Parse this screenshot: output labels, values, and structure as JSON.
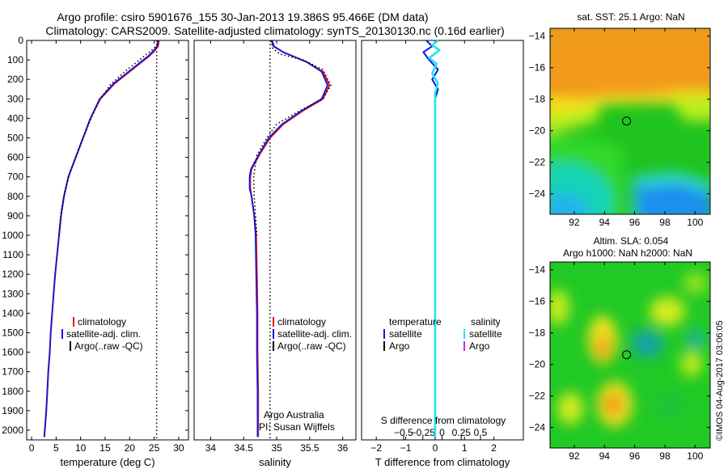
{
  "title": {
    "line1": "Argo profile: csiro 5901676_155 30-Jan-2013 19.386S 95.466E (DM data)",
    "line2": "Climatology: CARS2009. Satellite-adjusted climatology: synTS_20130130.nc (0.16d earlier)"
  },
  "colors": {
    "climatology": "#ee1111",
    "satellite": "#1515e0",
    "argo": "#000000",
    "cyan": "#22e5f0",
    "magenta": "#dd22dd"
  },
  "chart_data": [
    {
      "id": "temperature",
      "type": "line",
      "xlabel": "temperature (deg C)",
      "xlim": [
        -1,
        32
      ],
      "ylim": [
        2050,
        0
      ],
      "xticks": [
        0,
        5,
        10,
        15,
        20,
        25,
        30
      ],
      "yticks": [
        0,
        100,
        200,
        300,
        400,
        500,
        600,
        700,
        800,
        900,
        1000,
        1100,
        1200,
        1300,
        1400,
        1500,
        1600,
        1700,
        1800,
        1900,
        2000
      ],
      "ref_line": 25.5,
      "legend": [
        "climatology",
        "satellite-adj. clim.",
        "Argo(..raw -QC)"
      ],
      "series": [
        {
          "name": "climatology",
          "points": [
            [
              26,
              0
            ],
            [
              25.8,
              30
            ],
            [
              25,
              55
            ],
            [
              24,
              80
            ],
            [
              22.5,
              110
            ],
            [
              20,
              160
            ],
            [
              17,
              220
            ],
            [
              14,
              300
            ],
            [
              12,
              400
            ],
            [
              10.5,
              500
            ],
            [
              9,
              600
            ],
            [
              7.5,
              700
            ],
            [
              6.6,
              800
            ],
            [
              6,
              900
            ],
            [
              5.6,
              1000
            ],
            [
              5.2,
              1100
            ],
            [
              4.8,
              1200
            ],
            [
              4.5,
              1300
            ],
            [
              4.2,
              1400
            ],
            [
              3.9,
              1500
            ],
            [
              3.7,
              1600
            ],
            [
              3.4,
              1700
            ],
            [
              3.2,
              1800
            ],
            [
              3,
              1900
            ],
            [
              2.7,
              2000
            ],
            [
              2.6,
              2035
            ]
          ]
        },
        {
          "name": "satellite",
          "points": [
            [
              25.8,
              0
            ],
            [
              25.6,
              30
            ],
            [
              24.8,
              55
            ],
            [
              23.8,
              80
            ],
            [
              22.3,
              110
            ],
            [
              19.8,
              160
            ],
            [
              16.8,
              220
            ],
            [
              13.9,
              300
            ],
            [
              12,
              400
            ],
            [
              10.5,
              500
            ],
            [
              9,
              600
            ],
            [
              7.5,
              700
            ],
            [
              6.6,
              800
            ],
            [
              6,
              900
            ],
            [
              5.6,
              1000
            ],
            [
              5.2,
              1100
            ],
            [
              4.8,
              1200
            ],
            [
              4.5,
              1300
            ],
            [
              4.2,
              1400
            ],
            [
              3.9,
              1500
            ],
            [
              3.7,
              1600
            ],
            [
              3.4,
              1700
            ],
            [
              3.2,
              1800
            ],
            [
              3,
              1900
            ],
            [
              2.7,
              2000
            ],
            [
              2.6,
              2035
            ]
          ]
        },
        {
          "name": "argo",
          "points": [
            [
              25.8,
              0
            ],
            [
              25.6,
              20
            ],
            [
              25,
              40
            ],
            [
              23.5,
              70
            ],
            [
              22,
              100
            ],
            [
              19,
              160
            ],
            [
              16,
              230
            ],
            [
              13.5,
              320
            ],
            [
              11.8,
              420
            ],
            [
              10.2,
              520
            ],
            [
              9,
              600
            ],
            [
              7.8,
              680
            ],
            [
              6.8,
              770
            ],
            [
              6.1,
              870
            ],
            [
              5.6,
              1000
            ]
          ]
        }
      ]
    },
    {
      "id": "salinity",
      "type": "line",
      "xlabel": "salinity",
      "xlim": [
        33.75,
        36.2
      ],
      "ylim": [
        2050,
        0
      ],
      "xticks": [
        34,
        34.5,
        35,
        35.5,
        36
      ],
      "ref_line": 34.9,
      "legend": [
        "climatology",
        "satellite-adj. clim.",
        "Argo(..raw -QC)"
      ],
      "annotations": [
        "Argo Australia",
        "PI: Susan Wijffels"
      ],
      "series": [
        {
          "name": "climatology",
          "points": [
            [
              34.92,
              0
            ],
            [
              34.95,
              30
            ],
            [
              35.1,
              60
            ],
            [
              35.45,
              110
            ],
            [
              35.7,
              160
            ],
            [
              35.8,
              230
            ],
            [
              35.7,
              300
            ],
            [
              35.4,
              360
            ],
            [
              35.1,
              430
            ],
            [
              34.9,
              500
            ],
            [
              34.75,
              580
            ],
            [
              34.62,
              660
            ],
            [
              34.6,
              700
            ],
            [
              34.6,
              760
            ],
            [
              34.62,
              800
            ],
            [
              34.66,
              900
            ],
            [
              34.69,
              1000
            ],
            [
              34.7,
              1200
            ],
            [
              34.71,
              1400
            ],
            [
              34.71,
              1600
            ],
            [
              34.72,
              1800
            ],
            [
              34.72,
              2000
            ],
            [
              34.72,
              2035
            ]
          ]
        },
        {
          "name": "satellite",
          "points": [
            [
              34.93,
              0
            ],
            [
              34.96,
              30
            ],
            [
              35.1,
              60
            ],
            [
              35.45,
              110
            ],
            [
              35.68,
              160
            ],
            [
              35.77,
              230
            ],
            [
              35.68,
              300
            ],
            [
              35.38,
              360
            ],
            [
              35.08,
              430
            ],
            [
              34.88,
              500
            ],
            [
              34.74,
              580
            ],
            [
              34.61,
              660
            ],
            [
              34.59,
              700
            ],
            [
              34.59,
              760
            ],
            [
              34.62,
              800
            ],
            [
              34.66,
              900
            ],
            [
              34.68,
              1000
            ],
            [
              34.69,
              1200
            ],
            [
              34.7,
              1400
            ],
            [
              34.7,
              1600
            ],
            [
              34.71,
              1800
            ],
            [
              34.71,
              2000
            ],
            [
              34.71,
              2035
            ]
          ]
        },
        {
          "name": "argo",
          "points": [
            [
              34.92,
              0
            ],
            [
              34.94,
              40
            ],
            [
              35.05,
              70
            ],
            [
              35.4,
              100
            ],
            [
              35.7,
              150
            ],
            [
              35.82,
              230
            ],
            [
              35.7,
              300
            ],
            [
              35.3,
              370
            ],
            [
              35,
              430
            ],
            [
              34.85,
              500
            ],
            [
              34.7,
              590
            ],
            [
              34.65,
              700
            ],
            [
              34.66,
              800
            ],
            [
              34.68,
              900
            ],
            [
              34.7,
              1000
            ]
          ]
        }
      ]
    },
    {
      "id": "difference",
      "type": "line",
      "xlabel": "T difference from climatology",
      "xlim": [
        -2.5,
        3
      ],
      "ylim": [
        2050,
        0
      ],
      "xticks": [
        -2,
        -1,
        0,
        1,
        2
      ],
      "inner_label": "S difference from climatology",
      "inner_ticks": [
        "-0.5",
        "-0.25",
        "0",
        "0.25",
        "0.5"
      ],
      "inner_tick_values": [
        -0.5,
        -0.25,
        0,
        0.25,
        0.5
      ],
      "legend_temperature": [
        "temperature",
        "satellite",
        "Argo"
      ],
      "legend_salinity": [
        "salinity",
        "satellite",
        "Argo"
      ],
      "series": [
        {
          "name": "temperature satellite",
          "points": [
            [
              -0.3,
              0
            ],
            [
              -0.1,
              30
            ],
            [
              -0.4,
              60
            ],
            [
              -0.2,
              100
            ],
            [
              0.1,
              150
            ],
            [
              -0.1,
              200
            ],
            [
              0.1,
              250
            ],
            [
              0,
              300
            ],
            [
              0,
              500
            ],
            [
              0,
              1000
            ],
            [
              0,
              1500
            ],
            [
              0,
              2035
            ]
          ]
        },
        {
          "name": "salinity satellite",
          "points": [
            [
              0.1,
              0
            ],
            [
              -0.1,
              25
            ],
            [
              0.15,
              50
            ],
            [
              -0.2,
              90
            ],
            [
              0.05,
              120
            ],
            [
              -0.1,
              170
            ],
            [
              0.1,
              220
            ],
            [
              0,
              270
            ],
            [
              0,
              500
            ],
            [
              0,
              1000
            ],
            [
              0,
              1500
            ],
            [
              0,
              2035
            ]
          ]
        }
      ]
    }
  ],
  "maps": [
    {
      "id": "sst-map",
      "title": "sat. SST: 25.1 Argo: NaN",
      "xticks": [
        92,
        94,
        96,
        98,
        100
      ],
      "yticks": [
        -14,
        -16,
        -18,
        -20,
        -22,
        -24
      ],
      "marker": [
        95.466,
        -19.386
      ]
    },
    {
      "id": "sla-map",
      "title_line1": "Altim. SLA: 0.054",
      "title_line2": "Argo h1000: NaN h2000: NaN",
      "xticks": [
        92,
        94,
        96,
        98,
        100
      ],
      "yticks": [
        -14,
        -16,
        -18,
        -20,
        -22,
        -24
      ],
      "marker": [
        95.466,
        -19.386
      ]
    }
  ],
  "credit": "©IMOS 04-Aug-2017 03:06:05"
}
